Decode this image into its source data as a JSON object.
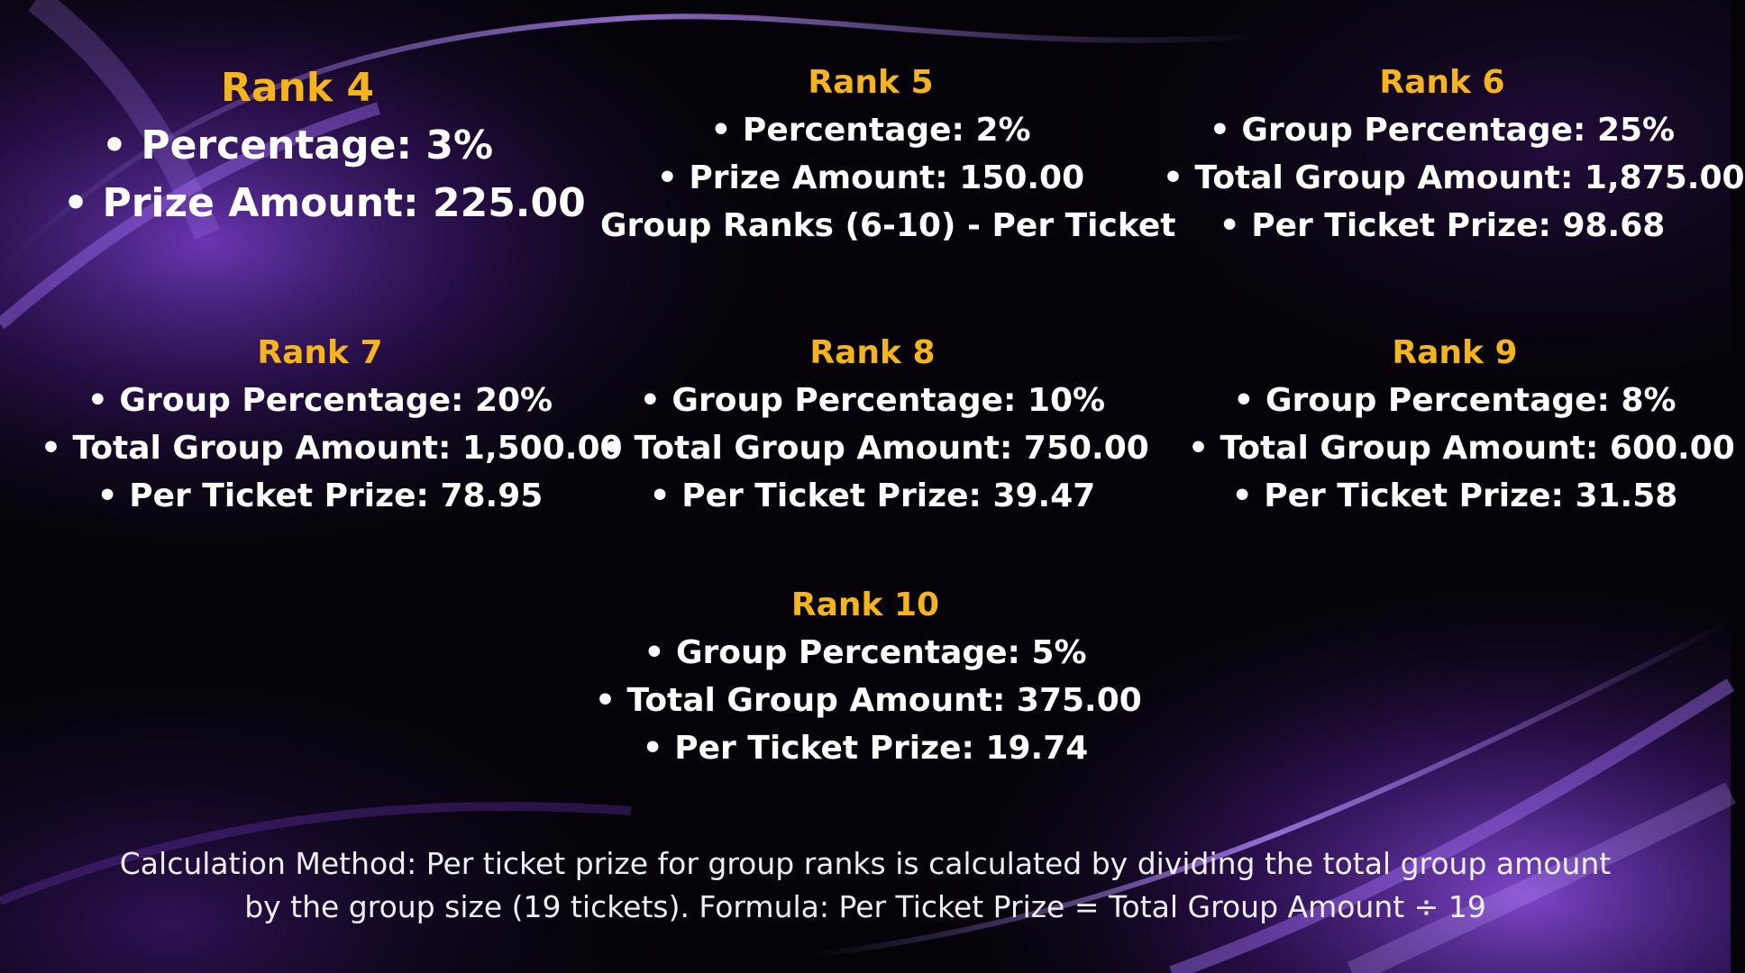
{
  "colors": {
    "title": "#f5b41c",
    "text": "#ffffff",
    "accent_purple": "#8a4fd8",
    "background": "#050309"
  },
  "rank4": {
    "title": "Rank 4",
    "line1": "• Percentage: 3%",
    "line2": "• Prize Amount: 225.00"
  },
  "rank5": {
    "title": "Rank 5",
    "line1": "• Percentage: 2%",
    "line2": "• Prize Amount: 150.00",
    "line3": "Group Ranks (6-10) - Per Ticket"
  },
  "rank6": {
    "title": "Rank 6",
    "line1": "• Group Percentage: 25%",
    "line2": "• Total Group Amount: 1,875.00",
    "line3": "• Per Ticket Prize: 98.68"
  },
  "rank7": {
    "title": "Rank 7",
    "line1": "• Group Percentage: 20%",
    "line2": "• Total Group Amount: 1,500.00",
    "line3": "• Per Ticket Prize: 78.95"
  },
  "rank8": {
    "title": "Rank 8",
    "line1": "• Group Percentage: 10%",
    "line2": "• Total Group Amount: 750.00",
    "line3": "• Per Ticket Prize: 39.47"
  },
  "rank9": {
    "title": "Rank 9",
    "line1": "• Group Percentage: 8%",
    "line2": "• Total Group Amount: 600.00",
    "line3": "• Per Ticket Prize: 31.58"
  },
  "rank10": {
    "title": "Rank 10",
    "line1": "• Group Percentage: 5%",
    "line2": "• Total Group Amount: 375.00",
    "line3": "• Per Ticket Prize: 19.74"
  },
  "footer": {
    "line1": "Calculation Method: Per ticket prize for group ranks is calculated by dividing the total group amount",
    "line2": "by the group size (19 tickets). Formula: Per Ticket Prize = Total Group Amount ÷ 19"
  }
}
